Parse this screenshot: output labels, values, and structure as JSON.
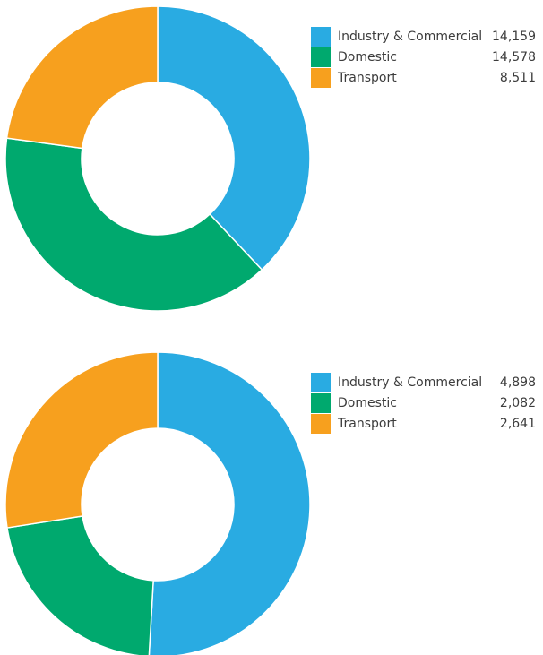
{
  "chart_data": [
    {
      "type": "donut",
      "categories": [
        "Industry & Commercial",
        "Domestic",
        "Transport"
      ],
      "values": [
        14159,
        14578,
        8511
      ],
      "value_labels": [
        "14,159",
        "14,578",
        "8,511"
      ],
      "colors": [
        "#29abe2",
        "#00a96e",
        "#f7a01e"
      ]
    },
    {
      "type": "donut",
      "categories": [
        "Industry & Commercial",
        "Domestic",
        "Transport"
      ],
      "values": [
        4898,
        2082,
        2641
      ],
      "value_labels": [
        "4,898",
        "2,082",
        "2,641"
      ],
      "colors": [
        "#29abe2",
        "#00a96e",
        "#f7a01e"
      ]
    }
  ]
}
